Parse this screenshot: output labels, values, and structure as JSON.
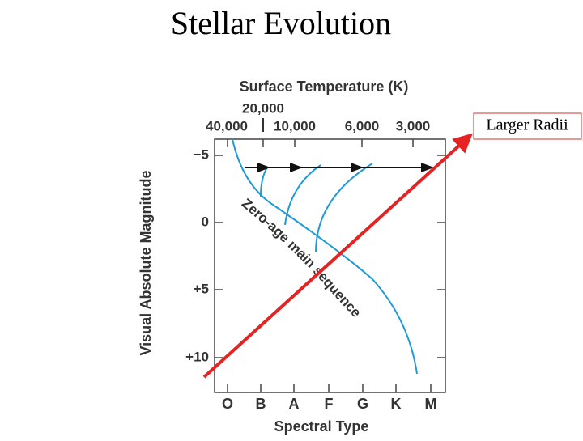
{
  "title": "Stellar Evolution",
  "diagram": {
    "top_axis_title": "Surface Temperature (K)",
    "top_ticks": [
      "40,000",
      "20,000",
      "10,000",
      "6,000",
      "3,000"
    ],
    "y_axis_title": "Visual Absolute Magnitude",
    "y_ticks": [
      "−5",
      "0",
      "+5",
      "+10"
    ],
    "x_axis_title": "Spectral Type",
    "x_ticks": [
      "O",
      "B",
      "A",
      "F",
      "G",
      "K",
      "M"
    ],
    "curve_label": "Zero-age main sequence",
    "annotation": "Larger Radii"
  }
}
